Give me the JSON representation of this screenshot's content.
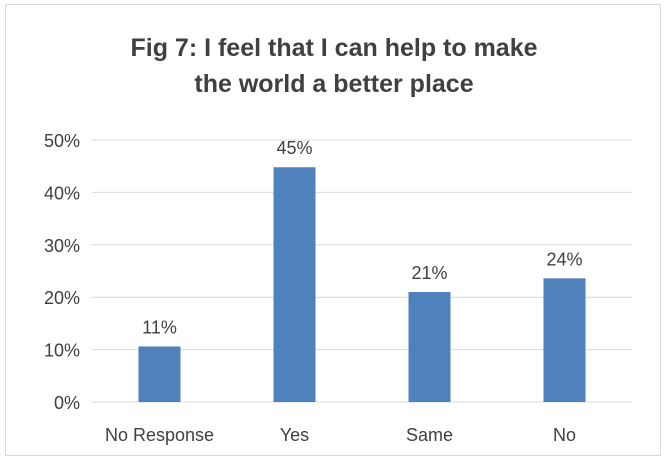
{
  "chart_data": {
    "type": "bar",
    "title_lines": [
      "Fig 7: I feel that I can help to make",
      "the world a better place"
    ],
    "categories": [
      "No Response",
      "Yes",
      "Same",
      "No"
    ],
    "values": [
      11,
      45,
      21,
      24
    ],
    "data_labels": [
      "11%",
      "45%",
      "21%",
      "24%"
    ],
    "bar_heights_percent": [
      10.6,
      44.8,
      21.0,
      23.6
    ],
    "ylim": [
      0,
      50
    ],
    "yticks": [
      0,
      10,
      20,
      30,
      40,
      50
    ],
    "ytick_labels": [
      "0%",
      "10%",
      "20%",
      "30%",
      "40%",
      "50%"
    ],
    "xlabel": "",
    "ylabel": "",
    "grid": true,
    "legend": "none",
    "colors": {
      "bar": "#4f81bd",
      "grid": "#d9d9d9",
      "text": "#404040",
      "title": "#404040"
    }
  }
}
